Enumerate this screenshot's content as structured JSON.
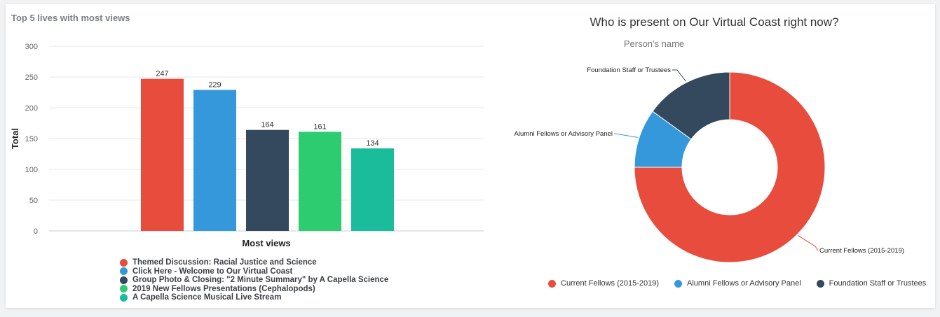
{
  "chart_data": [
    {
      "type": "bar",
      "title": "Top 5 lives with most views",
      "xlabel": "Most views",
      "ylabel": "Total",
      "ylim": [
        0,
        300
      ],
      "yticks": [
        0,
        50,
        100,
        150,
        200,
        250,
        300
      ],
      "grid": true,
      "legend_placement": "bottom",
      "categories": [
        "Themed Discussion: Racial Justice and Science",
        "Click Here - Welcome to Our Virtual Coast",
        "Group Photo & Closing: \"2 Minute Summary\" by A Capella Science",
        "2019 New Fellows Presentations (Cephalopods)",
        "A Capella Science Musical Live Stream"
      ],
      "values": [
        247,
        229,
        164,
        161,
        134
      ],
      "colors": [
        "#e74c3c",
        "#3498db",
        "#34495e",
        "#2ecc71",
        "#1abc9c"
      ]
    },
    {
      "type": "pie",
      "title": "Who is present on Our Virtual Coast right now?",
      "subtitle": "Person's name",
      "donut": true,
      "legend_placement": "bottom",
      "slices": [
        {
          "label": "Current Fellows (2015-2019)",
          "value": 75,
          "color": "#e74c3c"
        },
        {
          "label": "Alumni Fellows or Advisory Panel",
          "value": 10,
          "color": "#3498db"
        },
        {
          "label": "Foundation Staff or Trustees",
          "value": 15,
          "color": "#34495e"
        }
      ]
    }
  ]
}
